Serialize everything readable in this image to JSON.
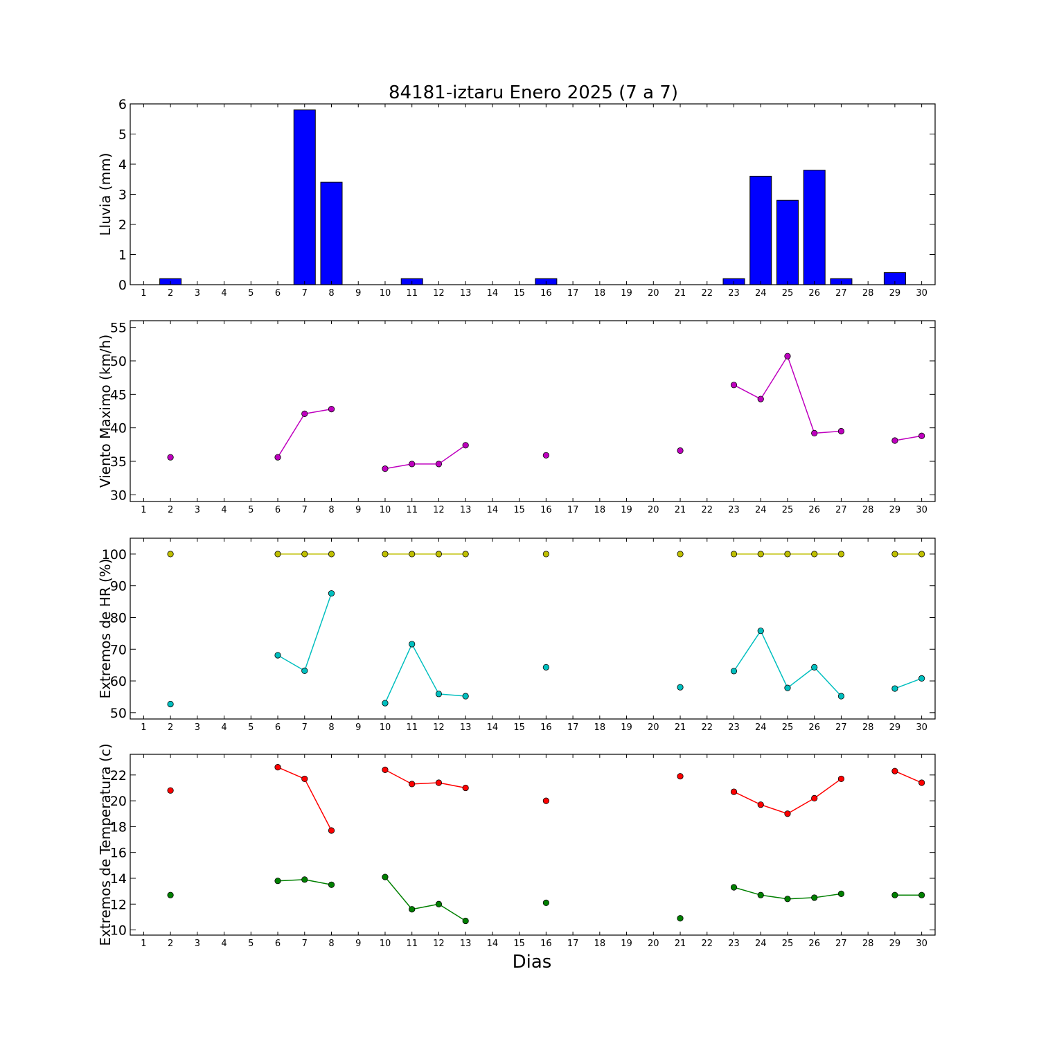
{
  "title": "84181-iztaru Enero 2025  (7 a 7)",
  "xlabel": "Dias",
  "chart_data": [
    {
      "type": "bar",
      "ylabel": "Lluvia (mm)",
      "ylim": [
        0,
        6
      ],
      "yticks": [
        0,
        1,
        2,
        3,
        4,
        5,
        6
      ],
      "xticks": [
        1,
        2,
        3,
        4,
        5,
        6,
        7,
        8,
        9,
        10,
        11,
        12,
        13,
        14,
        15,
        16,
        17,
        18,
        19,
        20,
        21,
        22,
        23,
        24,
        25,
        26,
        27,
        28,
        29,
        30
      ],
      "color": "#0000ff",
      "series": [
        {
          "x": [
            2,
            6,
            7,
            8,
            10,
            11,
            12,
            13,
            16,
            21,
            23,
            24,
            25,
            26,
            27,
            29
          ],
          "values": [
            0.2,
            0,
            5.8,
            3.4,
            0,
            0.2,
            0,
            0,
            0.2,
            0,
            0.2,
            3.6,
            2.8,
            3.8,
            0.2,
            0.4
          ]
        }
      ]
    },
    {
      "type": "line",
      "ylabel": "Viento Maximo (km/h)",
      "ylim": [
        29,
        56
      ],
      "yticks": [
        30,
        35,
        40,
        45,
        50,
        55
      ],
      "xticks": [
        1,
        2,
        3,
        4,
        5,
        6,
        7,
        8,
        9,
        10,
        11,
        12,
        13,
        14,
        15,
        16,
        17,
        18,
        19,
        20,
        21,
        22,
        23,
        24,
        25,
        26,
        27,
        28,
        29,
        30
      ],
      "series": [
        {
          "color": "#bf00bf",
          "points": [
            [
              2,
              35.6
            ],
            [
              6,
              35.6
            ],
            [
              7,
              42.1
            ],
            [
              8,
              42.8
            ],
            [
              10,
              33.9
            ],
            [
              11,
              34.6
            ],
            [
              12,
              34.6
            ],
            [
              13,
              37.4
            ],
            [
              16,
              35.9
            ],
            [
              21,
              36.6
            ],
            [
              23,
              46.4
            ],
            [
              24,
              44.3
            ],
            [
              25,
              50.7
            ],
            [
              26,
              39.2
            ],
            [
              27,
              39.5
            ],
            [
              29,
              38.1
            ],
            [
              30,
              38.8
            ]
          ]
        }
      ]
    },
    {
      "type": "line",
      "ylabel": "Extremos de HR (%)",
      "ylim": [
        48,
        105
      ],
      "yticks": [
        50,
        60,
        70,
        80,
        90,
        100
      ],
      "xticks": [
        1,
        2,
        3,
        4,
        5,
        6,
        7,
        8,
        9,
        10,
        11,
        12,
        13,
        14,
        15,
        16,
        17,
        18,
        19,
        20,
        21,
        22,
        23,
        24,
        25,
        26,
        27,
        28,
        29,
        30
      ],
      "series": [
        {
          "color": "#bfbf00",
          "points": [
            [
              2,
              100
            ],
            [
              6,
              100
            ],
            [
              7,
              100
            ],
            [
              8,
              100
            ],
            [
              10,
              100
            ],
            [
              11,
              100
            ],
            [
              12,
              100
            ],
            [
              13,
              100
            ],
            [
              16,
              100
            ],
            [
              21,
              100
            ],
            [
              23,
              100
            ],
            [
              24,
              100
            ],
            [
              25,
              100
            ],
            [
              26,
              100
            ],
            [
              27,
              100
            ],
            [
              29,
              100
            ],
            [
              30,
              100
            ]
          ]
        },
        {
          "color": "#00bfbf",
          "points": [
            [
              2,
              52.7
            ],
            [
              6,
              68.1
            ],
            [
              7,
              63.2
            ],
            [
              8,
              87.6
            ],
            [
              10,
              53.0
            ],
            [
              11,
              71.6
            ],
            [
              12,
              55.9
            ],
            [
              13,
              55.2
            ],
            [
              16,
              64.3
            ],
            [
              21,
              58.0
            ],
            [
              23,
              63.1
            ],
            [
              24,
              75.8
            ],
            [
              25,
              57.8
            ],
            [
              26,
              64.3
            ],
            [
              27,
              55.2
            ],
            [
              29,
              57.6
            ],
            [
              30,
              60.8
            ]
          ]
        }
      ]
    },
    {
      "type": "line",
      "ylabel": "Extremos de Temperatura (c)",
      "ylim": [
        9.6,
        23.6
      ],
      "yticks": [
        10,
        12,
        14,
        16,
        18,
        20,
        22
      ],
      "xticks": [
        1,
        2,
        3,
        4,
        5,
        6,
        7,
        8,
        9,
        10,
        11,
        12,
        13,
        14,
        15,
        16,
        17,
        18,
        19,
        20,
        21,
        22,
        23,
        24,
        25,
        26,
        27,
        28,
        29,
        30
      ],
      "series": [
        {
          "color": "#ff0000",
          "points": [
            [
              2,
              20.8
            ],
            [
              6,
              22.6
            ],
            [
              7,
              21.7
            ],
            [
              8,
              17.7
            ],
            [
              10,
              22.4
            ],
            [
              11,
              21.3
            ],
            [
              12,
              21.4
            ],
            [
              13,
              21.0
            ],
            [
              16,
              20.0
            ],
            [
              21,
              21.9
            ],
            [
              23,
              20.7
            ],
            [
              24,
              19.7
            ],
            [
              25,
              19.0
            ],
            [
              26,
              20.2
            ],
            [
              27,
              21.7
            ],
            [
              29,
              22.3
            ],
            [
              30,
              21.4
            ]
          ]
        },
        {
          "color": "#008000",
          "points": [
            [
              2,
              12.7
            ],
            [
              6,
              13.8
            ],
            [
              7,
              13.9
            ],
            [
              8,
              13.5
            ],
            [
              10,
              14.1
            ],
            [
              11,
              11.6
            ],
            [
              12,
              12.0
            ],
            [
              13,
              10.7
            ],
            [
              16,
              12.1
            ],
            [
              21,
              10.9
            ],
            [
              23,
              13.3
            ],
            [
              24,
              12.7
            ],
            [
              25,
              12.4
            ],
            [
              26,
              12.5
            ],
            [
              27,
              12.8
            ],
            [
              29,
              12.7
            ],
            [
              30,
              12.7
            ]
          ]
        }
      ]
    }
  ]
}
